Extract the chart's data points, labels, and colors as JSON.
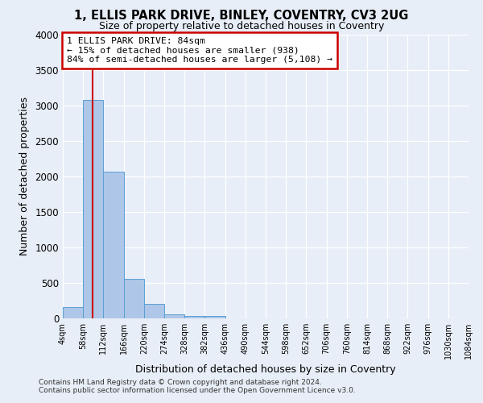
{
  "title": "1, ELLIS PARK DRIVE, BINLEY, COVENTRY, CV3 2UG",
  "subtitle": "Size of property relative to detached houses in Coventry",
  "xlabel": "Distribution of detached houses by size in Coventry",
  "ylabel": "Number of detached properties",
  "bin_edges": [
    4,
    58,
    112,
    166,
    220,
    274,
    328,
    382,
    436,
    490,
    544,
    598,
    652,
    706,
    760,
    814,
    868,
    922,
    976,
    1030,
    1084
  ],
  "bin_counts": [
    160,
    3070,
    2060,
    560,
    200,
    60,
    35,
    35,
    0,
    0,
    0,
    0,
    0,
    0,
    0,
    0,
    0,
    0,
    0,
    0
  ],
  "bar_color": "#aec6e8",
  "bar_edge_color": "#5a9fd4",
  "property_size": 84,
  "property_line_color": "#cc0000",
  "ylim": [
    0,
    4000
  ],
  "annotation_title": "1 ELLIS PARK DRIVE: 84sqm",
  "annotation_line1": "← 15% of detached houses are smaller (938)",
  "annotation_line2": "84% of semi-detached houses are larger (5,108) →",
  "annotation_box_color": "#ffffff",
  "annotation_box_edge": "#cc0000",
  "footer1": "Contains HM Land Registry data © Crown copyright and database right 2024.",
  "footer2": "Contains public sector information licensed under the Open Government Licence v3.0.",
  "background_color": "#e8eef7",
  "plot_background": "#e8eef7",
  "tick_labels": [
    "4sqm",
    "58sqm",
    "112sqm",
    "166sqm",
    "220sqm",
    "274sqm",
    "328sqm",
    "382sqm",
    "436sqm",
    "490sqm",
    "544sqm",
    "598sqm",
    "652sqm",
    "706sqm",
    "760sqm",
    "814sqm",
    "868sqm",
    "922sqm",
    "976sqm",
    "1030sqm",
    "1084sqm"
  ],
  "yticks": [
    0,
    500,
    1000,
    1500,
    2000,
    2500,
    3000,
    3500,
    4000
  ]
}
